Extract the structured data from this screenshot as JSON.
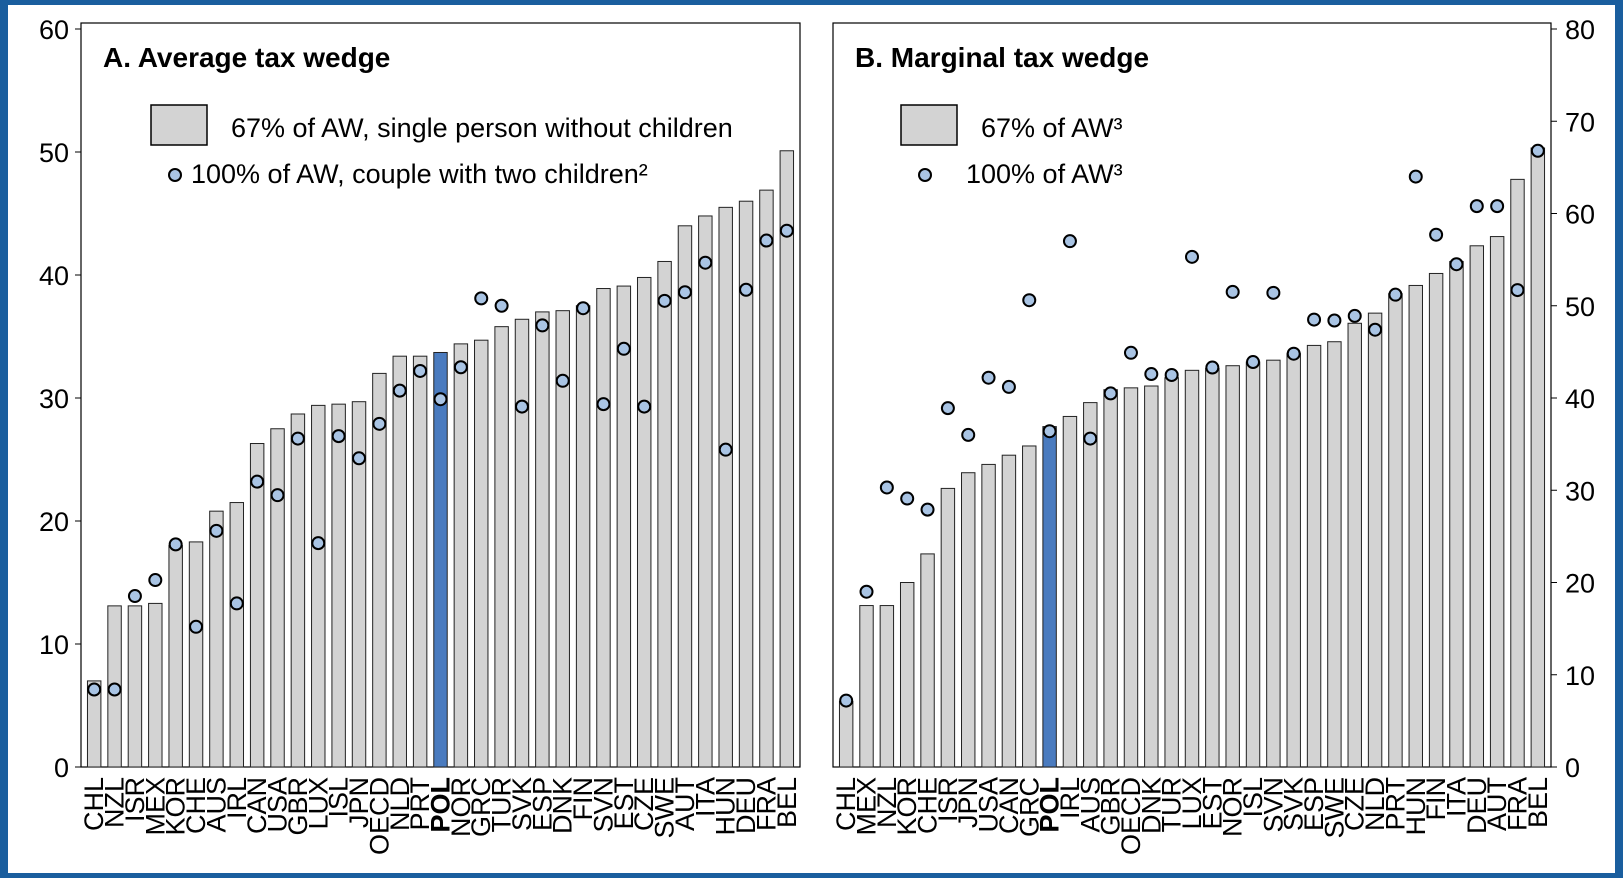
{
  "chart_data": [
    {
      "type": "bar",
      "title": "A. Average tax wedge",
      "categories": [
        "CHL",
        "NZL",
        "ISR",
        "MEX",
        "KOR",
        "CHE",
        "AUS",
        "IRL",
        "CAN",
        "USA",
        "GBR",
        "LUX",
        "ISL",
        "JPN",
        "OECD",
        "NLD",
        "PRT",
        "POL",
        "NOR",
        "GRC",
        "TUR",
        "SVK",
        "ESP",
        "DNK",
        "FIN",
        "SVN",
        "EST",
        "CZE",
        "SWE",
        "AUT",
        "ITA",
        "HUN",
        "DEU",
        "FRA",
        "BEL"
      ],
      "series": [
        {
          "name": "67% of AW, single person without children",
          "type": "bar",
          "color": "#d3d3d3",
          "colors": [
            "#d3d3d3",
            "#d3d3d3",
            "#d3d3d3",
            "#d3d3d3",
            "#d3d3d3",
            "#d3d3d3",
            "#d3d3d3",
            "#d3d3d3",
            "#d3d3d3",
            "#d3d3d3",
            "#d3d3d3",
            "#d3d3d3",
            "#d3d3d3",
            "#d3d3d3",
            "#d3d3d3",
            "#d3d3d3",
            "#d3d3d3",
            "#4a7bbf",
            "#d3d3d3",
            "#d3d3d3",
            "#d3d3d3",
            "#d3d3d3",
            "#d3d3d3",
            "#d3d3d3",
            "#d3d3d3",
            "#d3d3d3",
            "#d3d3d3",
            "#d3d3d3",
            "#d3d3d3",
            "#d3d3d3",
            "#d3d3d3",
            "#d3d3d3",
            "#d3d3d3",
            "#d3d3d3",
            "#d3d3d3"
          ],
          "values": [
            7.0,
            13.1,
            13.1,
            13.3,
            18.0,
            18.3,
            20.8,
            21.5,
            26.3,
            27.5,
            28.7,
            29.4,
            29.5,
            29.7,
            32.0,
            33.4,
            33.4,
            33.7,
            34.4,
            34.7,
            35.8,
            36.4,
            37.0,
            37.1,
            37.5,
            38.9,
            39.1,
            39.8,
            41.1,
            44.0,
            44.8,
            45.5,
            46.0,
            46.9,
            50.1
          ]
        },
        {
          "name": "100% of AW, couple with two children²",
          "type": "scatter",
          "color": "#a9c4e4",
          "values": [
            6.3,
            6.3,
            13.9,
            15.2,
            18.1,
            11.4,
            19.2,
            13.3,
            23.2,
            22.1,
            26.7,
            18.2,
            26.9,
            25.1,
            27.9,
            30.6,
            32.2,
            29.9,
            32.5,
            38.1,
            37.5,
            29.3,
            35.9,
            31.4,
            37.3,
            29.5,
            34.0,
            29.3,
            37.9,
            38.6,
            41.0,
            25.8,
            38.8,
            42.8,
            43.6
          ]
        }
      ],
      "ylim": [
        0,
        60
      ],
      "yticks": [
        0,
        10,
        20,
        30,
        40,
        50,
        60
      ],
      "y_axis_side": "left",
      "legend": "upper left",
      "grid": false
    },
    {
      "type": "bar",
      "title": "B. Marginal tax wedge",
      "categories": [
        "CHL",
        "MEX",
        "NZL",
        "KOR",
        "CHE",
        "ISR",
        "JPN",
        "USA",
        "CAN",
        "GRC",
        "POL",
        "IRL",
        "AUS",
        "GBR",
        "OECD",
        "DNK",
        "TUR",
        "LUX",
        "EST",
        "NOR",
        "ISL",
        "SVN",
        "SVK",
        "ESP",
        "SWE",
        "CZE",
        "NLD",
        "PRT",
        "HUN",
        "FIN",
        "ITA",
        "DEU",
        "AUT",
        "FRA",
        "BEL"
      ],
      "series": [
        {
          "name": "67% of AW³",
          "type": "bar",
          "color": "#d3d3d3",
          "colors": [
            "#d3d3d3",
            "#d3d3d3",
            "#d3d3d3",
            "#d3d3d3",
            "#d3d3d3",
            "#d3d3d3",
            "#d3d3d3",
            "#d3d3d3",
            "#d3d3d3",
            "#d3d3d3",
            "#4a7bbf",
            "#d3d3d3",
            "#d3d3d3",
            "#d3d3d3",
            "#d3d3d3",
            "#d3d3d3",
            "#d3d3d3",
            "#d3d3d3",
            "#d3d3d3",
            "#d3d3d3",
            "#d3d3d3",
            "#d3d3d3",
            "#d3d3d3",
            "#d3d3d3",
            "#d3d3d3",
            "#d3d3d3",
            "#d3d3d3",
            "#d3d3d3",
            "#d3d3d3",
            "#d3d3d3",
            "#d3d3d3",
            "#d3d3d3",
            "#d3d3d3",
            "#d3d3d3",
            "#d3d3d3"
          ],
          "values": [
            7.1,
            17.5,
            17.5,
            20.0,
            23.1,
            30.2,
            31.9,
            32.8,
            33.8,
            34.8,
            36.9,
            38.0,
            39.5,
            40.9,
            41.1,
            41.3,
            42.2,
            43.0,
            43.2,
            43.5,
            43.9,
            44.1,
            44.8,
            45.7,
            46.1,
            48.1,
            49.2,
            51.3,
            52.2,
            53.5,
            54.8,
            56.5,
            57.5,
            63.7,
            67.1
          ]
        },
        {
          "name": "100% of AW³",
          "type": "scatter",
          "color": "#a9c4e4",
          "values": [
            7.2,
            19.0,
            30.3,
            29.1,
            27.9,
            38.9,
            36.0,
            42.2,
            41.2,
            50.6,
            36.4,
            57.0,
            35.6,
            40.5,
            44.9,
            42.6,
            42.5,
            55.3,
            43.3,
            51.5,
            43.9,
            51.4,
            44.8,
            48.5,
            48.4,
            48.9,
            47.4,
            51.2,
            64.0,
            57.7,
            54.5,
            60.8,
            60.8,
            51.7,
            66.8
          ]
        }
      ],
      "ylim": [
        0,
        80
      ],
      "yticks": [
        0,
        10,
        20,
        30,
        40,
        50,
        60,
        70,
        80
      ],
      "y_axis_side": "right",
      "legend": "upper left",
      "grid": false
    }
  ]
}
